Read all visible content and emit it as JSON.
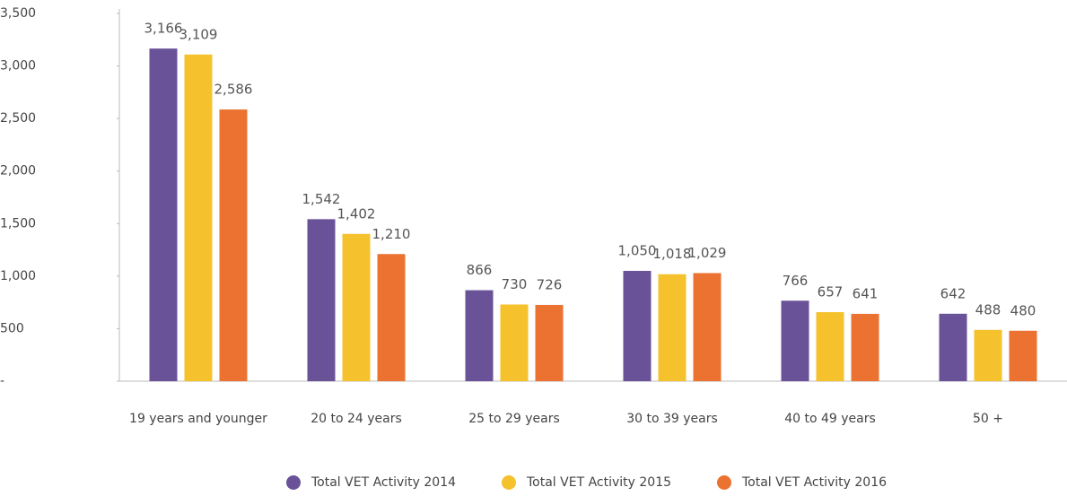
{
  "chart_data": {
    "type": "bar",
    "categories": [
      "19 years and younger",
      "20 to 24 years",
      "25 to 29 years",
      "30 to 39 years",
      "40 to 49 years",
      "50 +"
    ],
    "series": [
      {
        "name": "Total VET Activity 2014",
        "color": "#6a5298",
        "values": [
          3166,
          1542,
          866,
          1050,
          766,
          642
        ],
        "value_labels": [
          "3,166",
          "1,542",
          "866",
          "1,050",
          "766",
          "642"
        ]
      },
      {
        "name": "Total VET Activity 2015",
        "color": "#f5c12c",
        "values": [
          3109,
          1402,
          730,
          1018,
          657,
          488
        ],
        "value_labels": [
          "3,109",
          "1,402",
          "730",
          "1,018",
          "657",
          "488"
        ]
      },
      {
        "name": "Total VET Activity 2016",
        "color": "#eb7230",
        "values": [
          2586,
          1210,
          726,
          1029,
          641,
          480
        ],
        "value_labels": [
          "2,586",
          "1,210",
          "726",
          "1,029",
          "641",
          "480"
        ]
      }
    ],
    "ylim": [
      0,
      3500
    ],
    "yticks": [
      {
        "value": 0,
        "label": "-"
      },
      500,
      {
        "value": 1000,
        "label": "1,000"
      },
      {
        "value": 1500,
        "label": "1,500"
      },
      {
        "value": 2000,
        "label": "2,000"
      },
      {
        "value": 2500,
        "label": "2,500"
      },
      {
        "value": 3000,
        "label": "3,000"
      },
      {
        "value": 3500,
        "label": "3,500"
      }
    ],
    "grid": false,
    "legend": "bottom"
  }
}
